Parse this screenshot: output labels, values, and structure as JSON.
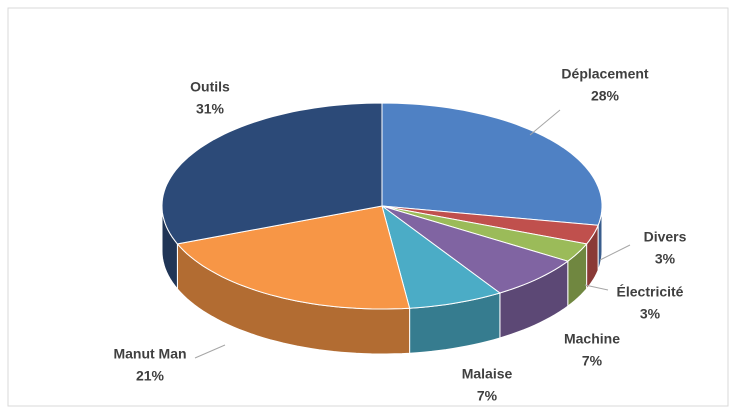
{
  "chart_data": {
    "type": "pie",
    "categories": [
      "Déplacement",
      "Divers",
      "Électricité",
      "Machine",
      "Malaise",
      "Manut Man",
      "Outils"
    ],
    "values": [
      28,
      3,
      3,
      7,
      7,
      21,
      31
    ],
    "value_labels": [
      "28%",
      "3%",
      "3%",
      "7%",
      "7%",
      "21%",
      "31%"
    ],
    "colors": [
      "#4f81c4",
      "#c0504d",
      "#9bbb59",
      "#8064a2",
      "#4bacc6",
      "#f79646",
      "#2c4a78"
    ]
  }
}
